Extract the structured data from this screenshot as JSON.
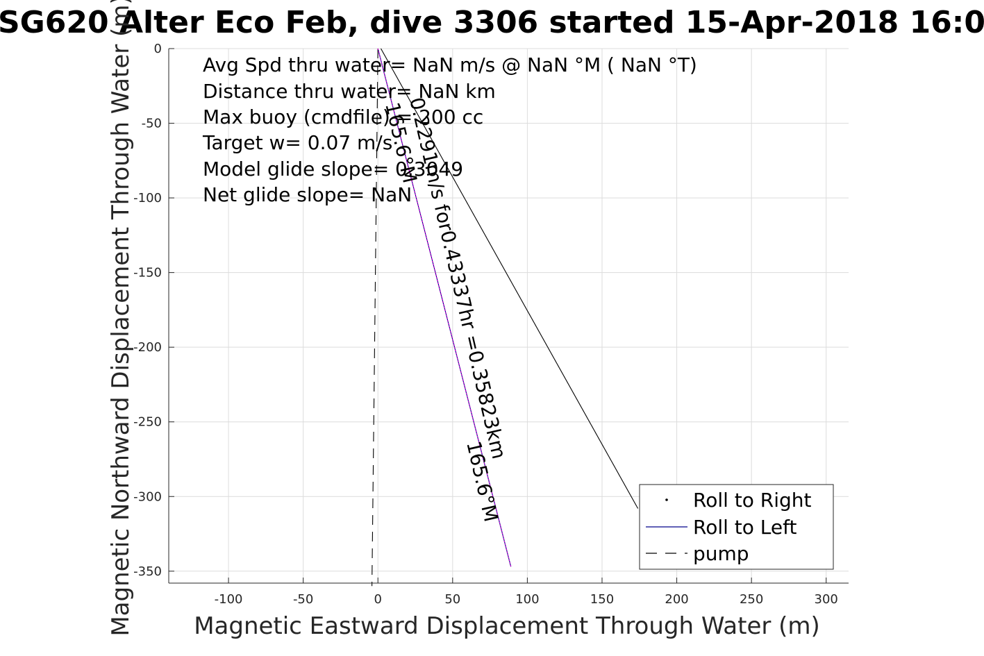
{
  "chart_data": {
    "type": "line",
    "title": "SG620 Alter Eco Feb, dive 3306 started 15-Apr-2018 16:0",
    "xlabel": "Magnetic Eastward Displacement Through Water (m)",
    "ylabel": "Magnetic Northward Displacement Through Water (m)",
    "xlim": [
      -140,
      315
    ],
    "ylim": [
      -358,
      0
    ],
    "xticks": [
      -100,
      -50,
      0,
      50,
      100,
      150,
      200,
      250,
      300
    ],
    "yticks": [
      0,
      -50,
      -100,
      -150,
      -200,
      -250,
      -300,
      -350
    ],
    "grid": true,
    "legend_position": "bottom-right",
    "annotations": [
      "Avg Spd thru water=   NaN m/s @   NaN °M (  NaN °T)",
      "Distance thru water=   NaN km",
      "Max buoy (cmdfile) = 200 cc",
      "Target w= 0.07 m/s",
      "Model glide slope= 0.3049",
      "Net glide slope=   NaN"
    ],
    "segment_labels": [
      {
        "text": "0.2291m/s for0.43337hr =0.35823km",
        "angle_deg": 77
      },
      {
        "text": "165.6°M",
        "angle_deg": 77
      },
      {
        "text": "165.6°M",
        "angle_deg": 77
      }
    ],
    "series": [
      {
        "name": "Roll to Right",
        "style": "point",
        "color": "#000000",
        "points": []
      },
      {
        "name": "Roll to Left",
        "style": "solid",
        "color": "#00008b",
        "points": [
          [
            0,
            0
          ],
          [
            89,
            -347
          ]
        ]
      },
      {
        "name": "pump",
        "style": "dashed",
        "color": "#000000",
        "points": [
          [
            0,
            0
          ],
          [
            -4,
            -360
          ]
        ]
      },
      {
        "style": "solid",
        "color": "#cc00cc",
        "points": [
          [
            0,
            0
          ],
          [
            89,
            -347
          ]
        ]
      },
      {
        "style": "solid",
        "color": "#000000",
        "points": [
          [
            2,
            0
          ],
          [
            174,
            -308
          ]
        ]
      }
    ]
  }
}
